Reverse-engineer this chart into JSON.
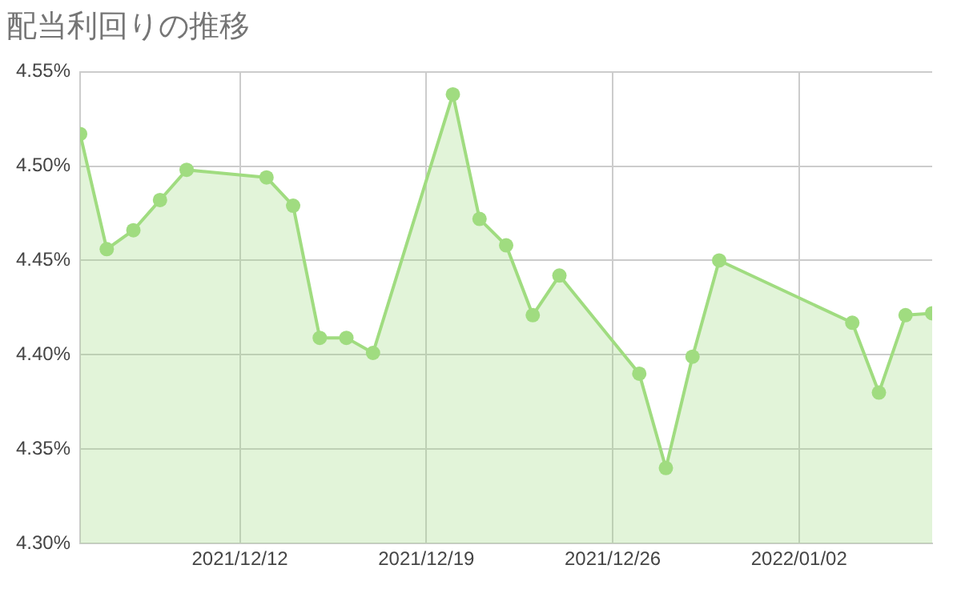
{
  "chart_data": {
    "type": "area",
    "title": "配当利回りの推移",
    "x": [
      "2021-12-06",
      "2021-12-07",
      "2021-12-08",
      "2021-12-09",
      "2021-12-10",
      "2021-12-13",
      "2021-12-14",
      "2021-12-15",
      "2021-12-16",
      "2021-12-17",
      "2021-12-20",
      "2021-12-21",
      "2021-12-22",
      "2021-12-23",
      "2021-12-24",
      "2021-12-27",
      "2021-12-28",
      "2021-12-29",
      "2021-12-30",
      "2022-01-04",
      "2022-01-05",
      "2022-01-06",
      "2022-01-07"
    ],
    "series": [
      {
        "color": "#a0dc80",
        "values": [
          4.517,
          4.456,
          4.466,
          4.482,
          4.498,
          4.494,
          4.479,
          4.409,
          4.409,
          4.401,
          4.538,
          4.472,
          4.458,
          4.421,
          4.442,
          4.39,
          4.34,
          4.399,
          4.45,
          4.417,
          4.38,
          4.421,
          4.422
        ]
      }
    ],
    "xlim": [
      "2021-12-06",
      "2022-01-07"
    ],
    "xticks": [
      {
        "value": "2021-12-12",
        "label": "2021/12/12"
      },
      {
        "value": "2021-12-19",
        "label": "2021/12/19"
      },
      {
        "value": "2021-12-26",
        "label": "2021/12/26"
      },
      {
        "value": "2022-01-02",
        "label": "2022/01/02"
      }
    ],
    "ylim": [
      4.3,
      4.55
    ],
    "yticks": [
      {
        "value": 4.3,
        "label": "4.30%"
      },
      {
        "value": 4.35,
        "label": "4.35%"
      },
      {
        "value": 4.4,
        "label": "4.40%"
      },
      {
        "value": 4.45,
        "label": "4.45%"
      },
      {
        "value": 4.5,
        "label": "4.50%"
      },
      {
        "value": 4.55,
        "label": "4.55%"
      }
    ],
    "grid": true,
    "legend": false,
    "marker": "circle"
  }
}
